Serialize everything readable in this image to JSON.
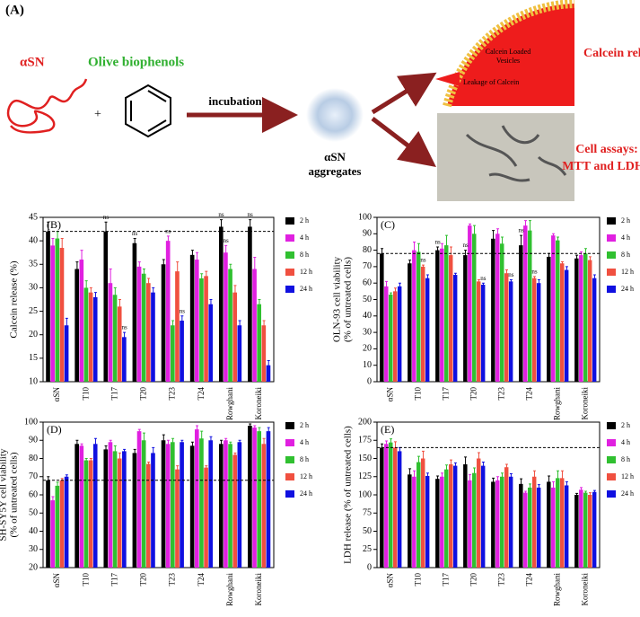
{
  "panel_a": {
    "label": "(A)",
    "protein": "αSN",
    "compound": "Olive biophenols",
    "plus": "+",
    "step": "incubation",
    "product": [
      "αSN",
      "aggregates"
    ],
    "vesicle_labels": [
      "Calcein Loaded",
      "Vesicles"
    ],
    "leakage": "Leakage of Calcein",
    "outcome_1": "Calcein release",
    "outcome_2": [
      "Cell assays:",
      "MTT and LDH"
    ]
  },
  "chart_data": [
    {
      "type": "bar",
      "panel_label": "(B)",
      "ylabel": [
        "Calcein release (%)"
      ],
      "categories": [
        "αSN",
        "T10",
        "T17",
        "T20",
        "T23",
        "T24",
        "Rowghani",
        "Koroneiki"
      ],
      "ylim": [
        10,
        45
      ],
      "yticks": [
        10,
        15,
        20,
        25,
        30,
        35,
        40,
        45
      ],
      "reference_line": 42,
      "series": [
        {
          "name": "2 h",
          "color": "#000000",
          "values": [
            42,
            34,
            42,
            39.5,
            35,
            37,
            43,
            43
          ],
          "errors": [
            2,
            1.5,
            2,
            1,
            1,
            1,
            1.5,
            1.5
          ]
        },
        {
          "name": "4 h",
          "color": "#e020e0",
          "values": [
            39,
            36,
            31,
            34.5,
            40,
            36,
            37.5,
            34
          ],
          "errors": [
            1.5,
            2,
            3,
            1,
            1,
            1.5,
            1.5,
            2.5
          ]
        },
        {
          "name": "8 h",
          "color": "#30c030",
          "values": [
            40.5,
            30,
            28.5,
            33,
            22,
            32,
            34,
            26.5
          ],
          "errors": [
            1.5,
            1.5,
            1.5,
            1,
            1,
            1,
            1,
            1
          ]
        },
        {
          "name": "12 h",
          "color": "#f05040",
          "values": [
            38.5,
            29,
            26,
            31,
            33.5,
            32.5,
            29,
            22
          ],
          "errors": [
            2,
            1,
            1.5,
            1,
            2,
            1,
            1.5,
            1
          ]
        },
        {
          "name": "24 h",
          "color": "#1010e0",
          "values": [
            22,
            28,
            19.5,
            29,
            23,
            26.5,
            22,
            13.5
          ],
          "errors": [
            1.5,
            1,
            1,
            1,
            1,
            1,
            1,
            1
          ]
        }
      ],
      "annotations": [
        {
          "label": "ns",
          "category": "T17",
          "series": "2 h"
        },
        {
          "label": "ns",
          "category": "T17",
          "series": "24 h"
        },
        {
          "label": "ns",
          "category": "T20",
          "series": "2 h"
        },
        {
          "label": "ns",
          "category": "T23",
          "series": "4 h"
        },
        {
          "label": "ns",
          "category": "T23",
          "series": "24 h"
        },
        {
          "label": "ns",
          "category": "Rowghani",
          "series": "2 h"
        },
        {
          "label": "ns",
          "category": "Rowghani",
          "series": "4 h"
        },
        {
          "label": "ns",
          "category": "Koroneiki",
          "series": "2 h"
        }
      ]
    },
    {
      "type": "bar",
      "panel_label": "(C)",
      "ylabel": [
        "OLN-93 cell viability",
        "(% of untreated cells)"
      ],
      "categories": [
        "αSN",
        "T10",
        "T17",
        "T20",
        "T23",
        "T24",
        "Rowghani",
        "Koroneiki"
      ],
      "ylim": [
        0,
        100
      ],
      "yticks": [
        0,
        10,
        20,
        30,
        40,
        50,
        60,
        70,
        80,
        90,
        100
      ],
      "reference_line": 78,
      "series": [
        {
          "name": "2 h",
          "color": "#000000",
          "values": [
            78,
            72,
            80,
            77,
            87,
            83,
            76,
            75
          ],
          "errors": [
            3,
            2,
            2,
            3,
            5,
            6,
            2,
            2
          ]
        },
        {
          "name": "4 h",
          "color": "#e020e0",
          "values": [
            58,
            80,
            81,
            95,
            90,
            95,
            89,
            77
          ],
          "errors": [
            3,
            5,
            3,
            1,
            3,
            3,
            1,
            2
          ]
        },
        {
          "name": "8 h",
          "color": "#30c030",
          "values": [
            53,
            79,
            83,
            90,
            84,
            92,
            86,
            78
          ],
          "errors": [
            1,
            5,
            6,
            5,
            4,
            6,
            2,
            3
          ]
        },
        {
          "name": "12 h",
          "color": "#f05040",
          "values": [
            55,
            70,
            77,
            61,
            66,
            63,
            72,
            74
          ],
          "errors": [
            2,
            1,
            5,
            1,
            2,
            1,
            1,
            2
          ]
        },
        {
          "name": "24 h",
          "color": "#1010e0",
          "values": [
            58,
            63,
            65,
            59,
            61,
            60,
            68,
            63
          ],
          "errors": [
            2,
            2,
            1,
            1,
            1,
            2,
            2,
            2
          ]
        }
      ],
      "annotations": [
        {
          "label": "ns",
          "category": "T10",
          "series": "12 h"
        },
        {
          "label": "ns",
          "category": "T17",
          "series": "2 h"
        },
        {
          "label": "ns",
          "category": "T20",
          "series": "2 h"
        },
        {
          "label": "ns",
          "category": "T20",
          "series": "24 h"
        },
        {
          "label": "ns",
          "category": "T23",
          "series": "24 h"
        },
        {
          "label": "ns",
          "category": "T24",
          "series": "2 h"
        },
        {
          "label": "ns",
          "category": "T24",
          "series": "12 h"
        }
      ]
    },
    {
      "type": "bar",
      "panel_label": "(D)",
      "ylabel": [
        "SH-SY5Y cell viability",
        "(% of untreated cells)"
      ],
      "categories": [
        "αSN",
        "T10",
        "T17",
        "T20",
        "T23",
        "T24",
        "Rowghani",
        "Koroneiki"
      ],
      "ylim": [
        20,
        100
      ],
      "yticks": [
        20,
        30,
        40,
        50,
        60,
        70,
        80,
        90,
        100
      ],
      "reference_line": 68,
      "series": [
        {
          "name": "2 h",
          "color": "#000000",
          "values": [
            68,
            88,
            85,
            83,
            90,
            87,
            88,
            98
          ],
          "errors": [
            2,
            2,
            2,
            2,
            3,
            2,
            2,
            1
          ]
        },
        {
          "name": "4 h",
          "color": "#e020e0",
          "values": [
            57,
            87,
            89,
            95,
            88,
            96,
            90,
            97
          ],
          "errors": [
            2,
            1,
            1,
            1,
            2,
            2,
            1,
            1
          ]
        },
        {
          "name": "8 h",
          "color": "#30c030",
          "values": [
            65,
            79,
            84,
            90,
            89,
            91,
            88,
            95
          ],
          "errors": [
            2,
            1,
            3,
            4,
            2,
            4,
            1,
            2
          ]
        },
        {
          "name": "12 h",
          "color": "#f05040",
          "values": [
            68,
            79,
            80,
            77,
            74,
            75,
            82,
            88
          ],
          "errors": [
            1,
            1,
            3,
            1,
            2,
            1,
            1,
            3
          ]
        },
        {
          "name": "24 h",
          "color": "#1010e0",
          "values": [
            70,
            88,
            84,
            83,
            89,
            90,
            89,
            95
          ],
          "errors": [
            1,
            3,
            1,
            3,
            1,
            2,
            1,
            2
          ]
        }
      ],
      "annotations": []
    },
    {
      "type": "bar",
      "panel_label": "(E)",
      "ylabel": [
        "LDH release (% of untreated cells)"
      ],
      "categories": [
        "αSN",
        "T10",
        "T17",
        "T20",
        "T23",
        "T24",
        "Rowghani",
        "Koroneiki"
      ],
      "ylim": [
        0,
        200
      ],
      "yticks": [
        0,
        25,
        50,
        75,
        100,
        125,
        150,
        175,
        200
      ],
      "reference_line": 165,
      "series": [
        {
          "name": "2 h",
          "color": "#000000",
          "values": [
            165,
            128,
            122,
            142,
            118,
            115,
            118,
            100
          ],
          "errors": [
            5,
            8,
            4,
            10,
            5,
            7,
            8,
            2
          ]
        },
        {
          "name": "4 h",
          "color": "#e020e0",
          "values": [
            170,
            125,
            125,
            120,
            120,
            103,
            110,
            107
          ],
          "errors": [
            4,
            8,
            5,
            8,
            5,
            2,
            8,
            3
          ]
        },
        {
          "name": "8 h",
          "color": "#30c030",
          "values": [
            172,
            145,
            135,
            130,
            125,
            110,
            123,
            103
          ],
          "errors": [
            5,
            8,
            6,
            7,
            5,
            5,
            10,
            2
          ]
        },
        {
          "name": "12 h",
          "color": "#f05040",
          "values": [
            165,
            150,
            142,
            150,
            138,
            125,
            123,
            100
          ],
          "errors": [
            8,
            10,
            6,
            8,
            4,
            8,
            10,
            3
          ]
        },
        {
          "name": "24 h",
          "color": "#1010e0",
          "values": [
            160,
            126,
            140,
            140,
            125,
            110,
            113,
            104
          ],
          "errors": [
            5,
            4,
            4,
            5,
            4,
            4,
            5,
            2
          ]
        }
      ],
      "annotations": []
    }
  ]
}
